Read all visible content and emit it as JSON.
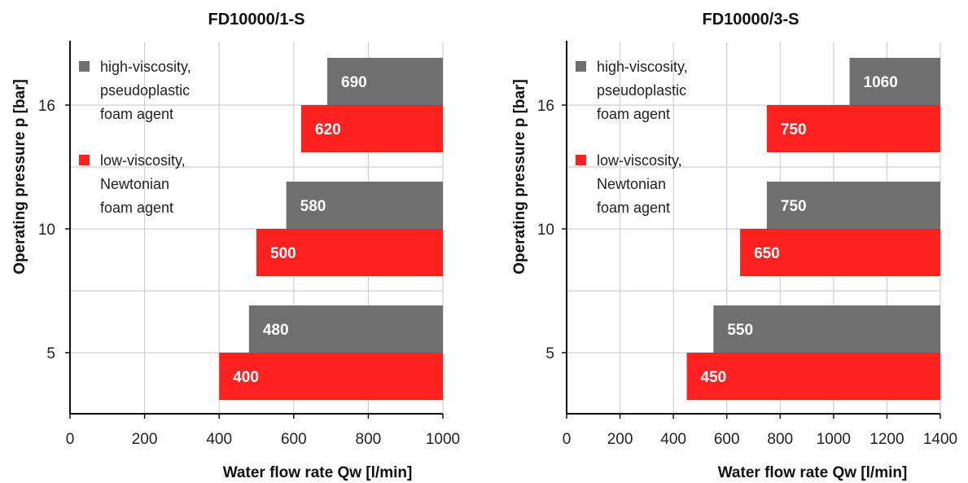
{
  "chart_data": [
    {
      "type": "bar",
      "orientation": "horizontal",
      "title": "FD10000/1-S",
      "xlabel": "Water flow rate Qw [l/min]",
      "ylabel": "Operating pressure  p [bar]",
      "xlim": [
        0,
        1000
      ],
      "xticks": [
        "0",
        "200",
        "400",
        "600",
        "800",
        "1000"
      ],
      "categories": [
        "16",
        "10",
        "5"
      ],
      "bars_extend_from": "right",
      "grid": true,
      "legend_position": "top-left",
      "series": [
        {
          "name": "high-viscosity, pseudoplastic foam agent",
          "legend_lines": [
            "high-viscosity,",
            "pseudoplastic",
            "foam agent"
          ],
          "color": "#6f6f6f",
          "values": [
            690,
            580,
            480
          ],
          "labels": [
            "690",
            "580",
            "480"
          ]
        },
        {
          "name": "low-viscosity, Newtonian foam agent",
          "legend_lines": [
            "low-viscosity,",
            "Newtonian",
            "foam agent"
          ],
          "color": "#ff2020",
          "values": [
            620,
            500,
            400
          ],
          "labels": [
            "620",
            "500",
            "400"
          ]
        }
      ]
    },
    {
      "type": "bar",
      "orientation": "horizontal",
      "title": "FD10000/3-S",
      "xlabel": "Water flow rate Qw [l/min]",
      "ylabel": "Operating pressure  p [bar]",
      "xlim": [
        0,
        1400
      ],
      "xticks": [
        "0",
        "200",
        "400",
        "600",
        "800",
        "1000",
        "1200",
        "1400"
      ],
      "categories": [
        "16",
        "10",
        "5"
      ],
      "bars_extend_from": "right",
      "grid": true,
      "legend_position": "top-left",
      "series": [
        {
          "name": "high-viscosity, pseudoplastic foam agent",
          "legend_lines": [
            "high-viscosity,",
            "pseudoplastic",
            "foam agent"
          ],
          "color": "#6f6f6f",
          "values": [
            1060,
            750,
            550
          ],
          "labels": [
            "1060",
            "750",
            "550"
          ]
        },
        {
          "name": "low-viscosity, Newtonian foam agent",
          "legend_lines": [
            "low-viscosity,",
            "Newtonian",
            "foam agent"
          ],
          "color": "#ff2020",
          "values": [
            750,
            650,
            450
          ],
          "labels": [
            "750",
            "650",
            "450"
          ]
        }
      ]
    }
  ]
}
